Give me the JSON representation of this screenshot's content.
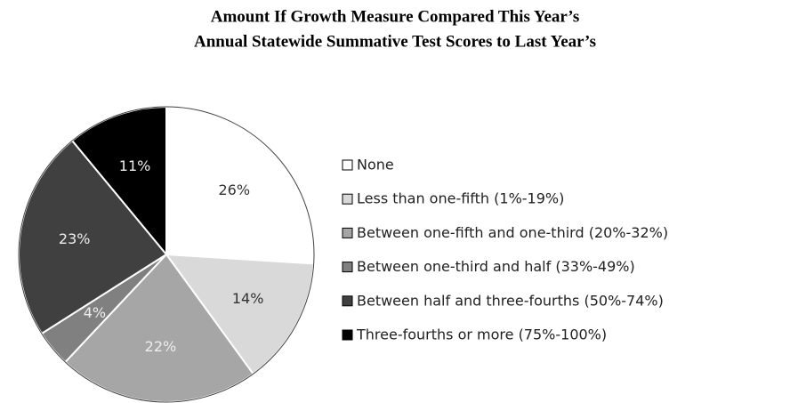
{
  "chart_data": {
    "type": "pie",
    "title": "Amount If Growth Measure Compared This Year’s",
    "subtitle": "Annual Statewide Summative Test Scores to Last Year’s",
    "categories": [
      "None",
      "Less than one-fifth (1%-19%)",
      "Between one-fifth and one-third (20%-32%)",
      "Between one-third and half (33%-49%)",
      "Between half and three-fourths (50%-74%)",
      "Three-fourths or more (75%-100%)"
    ],
    "values": [
      26,
      14,
      22,
      4,
      23,
      11
    ],
    "value_labels": [
      "26%",
      "14%",
      "22%",
      "4%",
      "23%",
      "11%"
    ],
    "colors": [
      "#ffffff",
      "#d9d9d9",
      "#a6a6a6",
      "#808080",
      "#404040",
      "#000000"
    ],
    "legend": "right"
  }
}
